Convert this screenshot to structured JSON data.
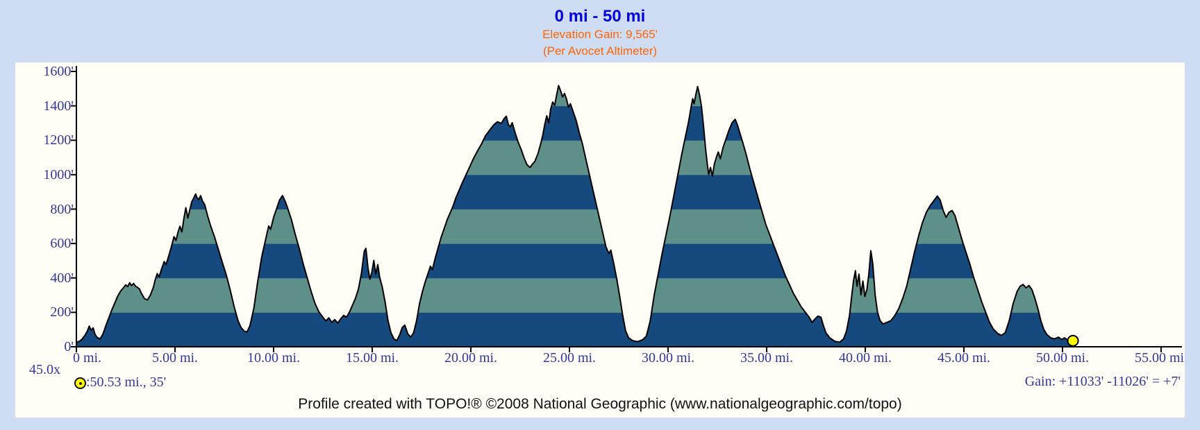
{
  "page": {
    "background_color": "#cfddf4",
    "panel_color": "#fffdf6"
  },
  "header": {
    "title": "0 mi - 50 mi",
    "subtitle": "Elevation Gain: 9,565'",
    "subtitle2": "(Per Avocet Altimeter)",
    "title_color": "#0000e0",
    "subtitle_color": "#ff6400"
  },
  "annotations": {
    "vertical_exaggeration": "45.0x",
    "marker_label": ":50.53 mi., 35'",
    "gain_summary": "Gain: +11033' -11026' = +7'"
  },
  "footer": {
    "caption": "Profile created with TOPO!® ©2008 National Geographic (www.nationalgeographic.com/topo)"
  },
  "chart_data": {
    "type": "area",
    "title": "0 mi - 50 mi",
    "x_unit": "miles",
    "y_unit": "feet",
    "xlim": [
      0,
      56.1
    ],
    "ylim": [
      0,
      1600
    ],
    "grid": false,
    "x_tick_values": [
      0,
      5,
      10,
      15,
      20,
      25,
      30,
      35,
      40,
      45,
      50,
      55
    ],
    "x_tick_labels": [
      "0 mi.",
      "5.00 mi.",
      "10.00 mi.",
      "15.00 mi.",
      "20.00 mi.",
      "25.00 mi.",
      "30.00 mi.",
      "35.00 mi.",
      "40.00 mi.",
      "45.00 mi.",
      "50.00 mi.",
      "55.00 mi."
    ],
    "y_tick_values": [
      0,
      200,
      400,
      600,
      800,
      1000,
      1200,
      1400,
      1600
    ],
    "y_tick_labels": [
      "0'",
      "200'",
      "400'",
      "600'",
      "800'",
      "1000'",
      "1200'",
      "1400'",
      "1600'"
    ],
    "band_interval_ft": 200,
    "band_color_low": "#164a7f",
    "band_color_high": "#5e9089",
    "outline_color": "#000000",
    "axis_color": "#000000",
    "tick_label_color": "#32389a",
    "end_marker": {
      "mile": 50.53,
      "elevation_ft": 35,
      "fill": "#ffff00",
      "stroke": "#000000"
    },
    "elevation_profile": [
      [
        0,
        25
      ],
      [
        0.15,
        32
      ],
      [
        0.3,
        45
      ],
      [
        0.45,
        70
      ],
      [
        0.55,
        90
      ],
      [
        0.65,
        120
      ],
      [
        0.75,
        95
      ],
      [
        0.85,
        110
      ],
      [
        0.95,
        70
      ],
      [
        1.05,
        55
      ],
      [
        1.2,
        45
      ],
      [
        1.35,
        75
      ],
      [
        1.5,
        125
      ],
      [
        1.65,
        170
      ],
      [
        1.8,
        215
      ],
      [
        1.95,
        255
      ],
      [
        2.1,
        295
      ],
      [
        2.25,
        325
      ],
      [
        2.4,
        345
      ],
      [
        2.5,
        360
      ],
      [
        2.6,
        350
      ],
      [
        2.7,
        372
      ],
      [
        2.8,
        355
      ],
      [
        2.9,
        368
      ],
      [
        3.0,
        352
      ],
      [
        3.1,
        345
      ],
      [
        3.2,
        335
      ],
      [
        3.3,
        310
      ],
      [
        3.45,
        280
      ],
      [
        3.6,
        272
      ],
      [
        3.75,
        300
      ],
      [
        3.9,
        345
      ],
      [
        4.0,
        390
      ],
      [
        4.1,
        425
      ],
      [
        4.2,
        408
      ],
      [
        4.3,
        445
      ],
      [
        4.45,
        495
      ],
      [
        4.55,
        478
      ],
      [
        4.7,
        535
      ],
      [
        4.85,
        595
      ],
      [
        4.95,
        640
      ],
      [
        5.05,
        618
      ],
      [
        5.15,
        665
      ],
      [
        5.25,
        700
      ],
      [
        5.35,
        668
      ],
      [
        5.45,
        745
      ],
      [
        5.55,
        808
      ],
      [
        5.65,
        748
      ],
      [
        5.75,
        795
      ],
      [
        5.85,
        842
      ],
      [
        5.95,
        865
      ],
      [
        6.05,
        888
      ],
      [
        6.1,
        870
      ],
      [
        6.2,
        855
      ],
      [
        6.3,
        878
      ],
      [
        6.4,
        845
      ],
      [
        6.5,
        828
      ],
      [
        6.65,
        762
      ],
      [
        6.8,
        705
      ],
      [
        7.0,
        640
      ],
      [
        7.2,
        565
      ],
      [
        7.4,
        490
      ],
      [
        7.6,
        418
      ],
      [
        7.8,
        330
      ],
      [
        8.0,
        232
      ],
      [
        8.2,
        150
      ],
      [
        8.35,
        112
      ],
      [
        8.5,
        92
      ],
      [
        8.65,
        86
      ],
      [
        8.8,
        122
      ],
      [
        9.0,
        225
      ],
      [
        9.2,
        385
      ],
      [
        9.4,
        525
      ],
      [
        9.6,
        625
      ],
      [
        9.75,
        702
      ],
      [
        9.85,
        682
      ],
      [
        10.0,
        752
      ],
      [
        10.15,
        802
      ],
      [
        10.3,
        852
      ],
      [
        10.45,
        878
      ],
      [
        10.6,
        842
      ],
      [
        10.75,
        792
      ],
      [
        10.9,
        740
      ],
      [
        11.1,
        652
      ],
      [
        11.3,
        572
      ],
      [
        11.5,
        482
      ],
      [
        11.7,
        402
      ],
      [
        11.9,
        322
      ],
      [
        12.1,
        252
      ],
      [
        12.3,
        202
      ],
      [
        12.5,
        172
      ],
      [
        12.65,
        150
      ],
      [
        12.8,
        168
      ],
      [
        12.95,
        142
      ],
      [
        13.1,
        158
      ],
      [
        13.25,
        138
      ],
      [
        13.4,
        162
      ],
      [
        13.55,
        182
      ],
      [
        13.7,
        172
      ],
      [
        13.85,
        202
      ],
      [
        14.0,
        242
      ],
      [
        14.15,
        282
      ],
      [
        14.3,
        335
      ],
      [
        14.45,
        425
      ],
      [
        14.6,
        556
      ],
      [
        14.68,
        572
      ],
      [
        14.78,
        462
      ],
      [
        14.88,
        392
      ],
      [
        14.98,
        432
      ],
      [
        15.08,
        502
      ],
      [
        15.18,
        422
      ],
      [
        15.28,
        478
      ],
      [
        15.38,
        402
      ],
      [
        15.5,
        352
      ],
      [
        15.65,
        262
      ],
      [
        15.8,
        152
      ],
      [
        15.95,
        82
      ],
      [
        16.1,
        46
      ],
      [
        16.25,
        36
      ],
      [
        16.4,
        72
      ],
      [
        16.52,
        112
      ],
      [
        16.65,
        126
      ],
      [
        16.8,
        76
      ],
      [
        16.95,
        56
      ],
      [
        17.1,
        82
      ],
      [
        17.25,
        152
      ],
      [
        17.4,
        252
      ],
      [
        17.55,
        322
      ],
      [
        17.7,
        382
      ],
      [
        17.85,
        432
      ],
      [
        17.95,
        468
      ],
      [
        18.05,
        448
      ],
      [
        18.2,
        518
      ],
      [
        18.35,
        578
      ],
      [
        18.5,
        638
      ],
      [
        18.65,
        688
      ],
      [
        18.8,
        738
      ],
      [
        18.95,
        778
      ],
      [
        19.1,
        818
      ],
      [
        19.25,
        868
      ],
      [
        19.4,
        908
      ],
      [
        19.55,
        948
      ],
      [
        19.75,
        998
      ],
      [
        19.95,
        1048
      ],
      [
        20.15,
        1098
      ],
      [
        20.35,
        1140
      ],
      [
        20.55,
        1180
      ],
      [
        20.75,
        1228
      ],
      [
        20.95,
        1258
      ],
      [
        21.15,
        1288
      ],
      [
        21.35,
        1308
      ],
      [
        21.55,
        1298
      ],
      [
        21.7,
        1328
      ],
      [
        21.8,
        1340
      ],
      [
        21.9,
        1292
      ],
      [
        22.0,
        1278
      ],
      [
        22.1,
        1302
      ],
      [
        22.25,
        1242
      ],
      [
        22.4,
        1188
      ],
      [
        22.55,
        1148
      ],
      [
        22.7,
        1098
      ],
      [
        22.85,
        1058
      ],
      [
        23.0,
        1042
      ],
      [
        23.1,
        1058
      ],
      [
        23.25,
        1078
      ],
      [
        23.4,
        1122
      ],
      [
        23.55,
        1182
      ],
      [
        23.65,
        1232
      ],
      [
        23.75,
        1292
      ],
      [
        23.85,
        1342
      ],
      [
        23.95,
        1302
      ],
      [
        24.05,
        1382
      ],
      [
        24.15,
        1422
      ],
      [
        24.25,
        1402
      ],
      [
        24.35,
        1462
      ],
      [
        24.45,
        1518
      ],
      [
        24.55,
        1488
      ],
      [
        24.65,
        1452
      ],
      [
        24.75,
        1472
      ],
      [
        24.85,
        1440
      ],
      [
        24.95,
        1392
      ],
      [
        25.05,
        1412
      ],
      [
        25.2,
        1362
      ],
      [
        25.35,
        1312
      ],
      [
        25.5,
        1242
      ],
      [
        25.65,
        1182
      ],
      [
        25.85,
        1082
      ],
      [
        26.05,
        982
      ],
      [
        26.25,
        882
      ],
      [
        26.45,
        782
      ],
      [
        26.65,
        682
      ],
      [
        26.85,
        582
      ],
      [
        27.0,
        542
      ],
      [
        27.1,
        562
      ],
      [
        27.25,
        482
      ],
      [
        27.4,
        392
      ],
      [
        27.55,
        292
      ],
      [
        27.7,
        182
      ],
      [
        27.85,
        92
      ],
      [
        28.0,
        52
      ],
      [
        28.2,
        36
      ],
      [
        28.45,
        30
      ],
      [
        28.7,
        40
      ],
      [
        28.9,
        62
      ],
      [
        29.1,
        152
      ],
      [
        29.3,
        302
      ],
      [
        29.5,
        422
      ],
      [
        29.7,
        542
      ],
      [
        29.9,
        652
      ],
      [
        30.1,
        762
      ],
      [
        30.3,
        882
      ],
      [
        30.5,
        1002
      ],
      [
        30.7,
        1122
      ],
      [
        30.9,
        1232
      ],
      [
        31.05,
        1312
      ],
      [
        31.15,
        1382
      ],
      [
        31.25,
        1442
      ],
      [
        31.32,
        1412
      ],
      [
        31.42,
        1472
      ],
      [
        31.5,
        1512
      ],
      [
        31.6,
        1462
      ],
      [
        31.7,
        1392
      ],
      [
        31.8,
        1282
      ],
      [
        31.9,
        1152
      ],
      [
        32.0,
        1052
      ],
      [
        32.06,
        1002
      ],
      [
        32.15,
        1042
      ],
      [
        32.25,
        992
      ],
      [
        32.35,
        1062
      ],
      [
        32.45,
        1102
      ],
      [
        32.55,
        1132
      ],
      [
        32.65,
        1092
      ],
      [
        32.8,
        1162
      ],
      [
        32.95,
        1212
      ],
      [
        33.1,
        1262
      ],
      [
        33.25,
        1302
      ],
      [
        33.4,
        1322
      ],
      [
        33.52,
        1288
      ],
      [
        33.65,
        1238
      ],
      [
        33.8,
        1182
      ],
      [
        33.95,
        1122
      ],
      [
        34.15,
        1032
      ],
      [
        34.35,
        952
      ],
      [
        34.55,
        872
      ],
      [
        34.75,
        792
      ],
      [
        34.95,
        712
      ],
      [
        35.15,
        652
      ],
      [
        35.35,
        592
      ],
      [
        35.55,
        532
      ],
      [
        35.75,
        472
      ],
      [
        35.95,
        412
      ],
      [
        36.15,
        362
      ],
      [
        36.35,
        312
      ],
      [
        36.55,
        272
      ],
      [
        36.75,
        232
      ],
      [
        36.95,
        202
      ],
      [
        37.15,
        172
      ],
      [
        37.3,
        142
      ],
      [
        37.45,
        162
      ],
      [
        37.6,
        178
      ],
      [
        37.75,
        172
      ],
      [
        37.88,
        122
      ],
      [
        38.0,
        82
      ],
      [
        38.2,
        52
      ],
      [
        38.45,
        32
      ],
      [
        38.7,
        27
      ],
      [
        38.9,
        46
      ],
      [
        39.05,
        92
      ],
      [
        39.2,
        182
      ],
      [
        39.3,
        282
      ],
      [
        39.4,
        382
      ],
      [
        39.5,
        442
      ],
      [
        39.58,
        352
      ],
      [
        39.68,
        422
      ],
      [
        39.78,
        302
      ],
      [
        39.88,
        382
      ],
      [
        39.98,
        292
      ],
      [
        40.08,
        332
      ],
      [
        40.18,
        422
      ],
      [
        40.28,
        558
      ],
      [
        40.38,
        482
      ],
      [
        40.5,
        302
      ],
      [
        40.62,
        202
      ],
      [
        40.75,
        152
      ],
      [
        40.9,
        132
      ],
      [
        41.1,
        142
      ],
      [
        41.3,
        152
      ],
      [
        41.5,
        182
      ],
      [
        41.7,
        222
      ],
      [
        41.9,
        282
      ],
      [
        42.1,
        352
      ],
      [
        42.3,
        452
      ],
      [
        42.5,
        552
      ],
      [
        42.7,
        642
      ],
      [
        42.9,
        722
      ],
      [
        43.1,
        782
      ],
      [
        43.3,
        822
      ],
      [
        43.5,
        852
      ],
      [
        43.65,
        876
      ],
      [
        43.8,
        852
      ],
      [
        43.95,
        792
      ],
      [
        44.1,
        752
      ],
      [
        44.25,
        782
      ],
      [
        44.4,
        792
      ],
      [
        44.55,
        762
      ],
      [
        44.7,
        702
      ],
      [
        44.9,
        622
      ],
      [
        45.1,
        552
      ],
      [
        45.3,
        482
      ],
      [
        45.5,
        402
      ],
      [
        45.7,
        332
      ],
      [
        45.9,
        262
      ],
      [
        46.1,
        202
      ],
      [
        46.3,
        142
      ],
      [
        46.5,
        102
      ],
      [
        46.7,
        78
      ],
      [
        46.9,
        66
      ],
      [
        47.1,
        82
      ],
      [
        47.3,
        152
      ],
      [
        47.5,
        252
      ],
      [
        47.7,
        322
      ],
      [
        47.85,
        352
      ],
      [
        48.0,
        362
      ],
      [
        48.15,
        342
      ],
      [
        48.3,
        356
      ],
      [
        48.45,
        332
      ],
      [
        48.6,
        282
      ],
      [
        48.75,
        222
      ],
      [
        48.9,
        152
      ],
      [
        49.05,
        102
      ],
      [
        49.2,
        72
      ],
      [
        49.4,
        52
      ],
      [
        49.6,
        46
      ],
      [
        49.8,
        56
      ],
      [
        49.95,
        42
      ],
      [
        50.1,
        52
      ],
      [
        50.25,
        40
      ],
      [
        50.4,
        46
      ],
      [
        50.53,
        35
      ]
    ]
  }
}
